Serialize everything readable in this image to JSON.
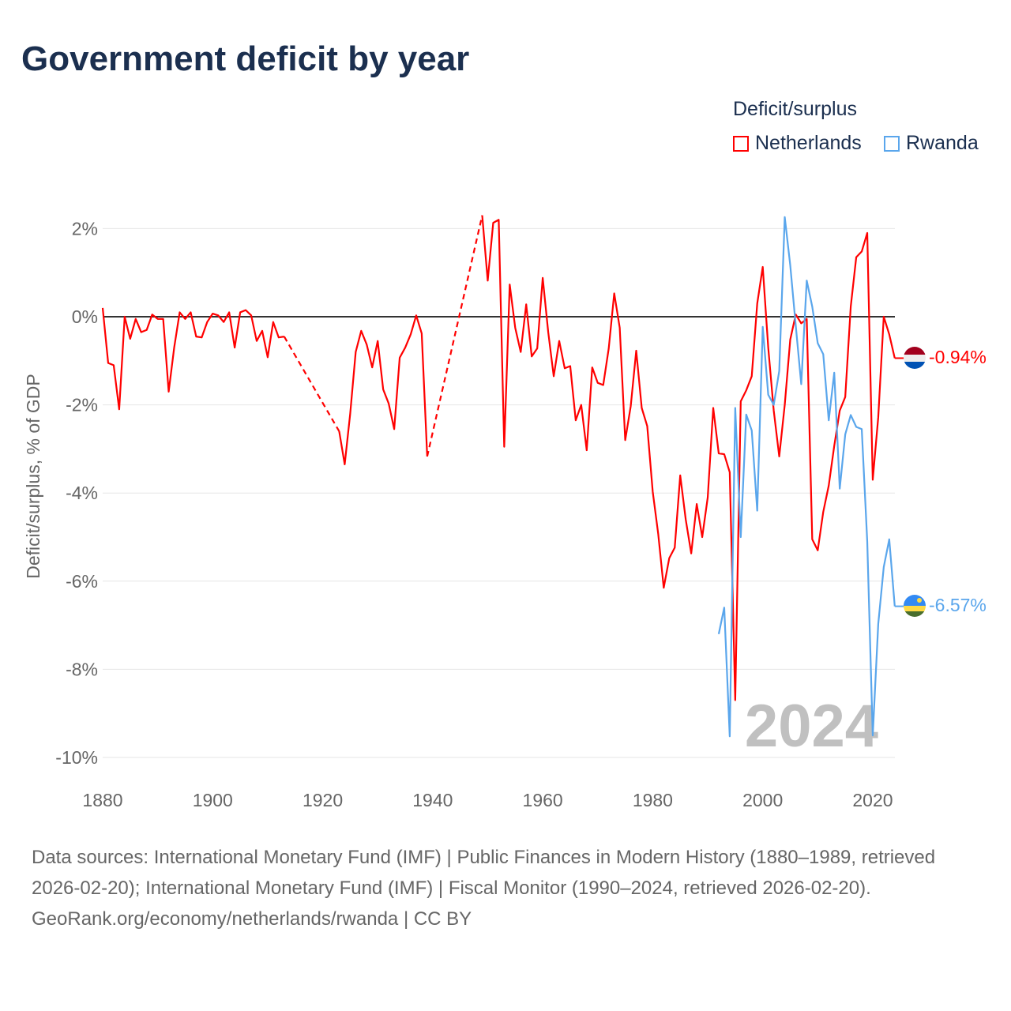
{
  "title": "Government deficit by year",
  "legend": {
    "title": "Deficit/surplus",
    "items": [
      "Netherlands",
      "Rwanda"
    ]
  },
  "colors": {
    "Netherlands": "#ff0000",
    "Rwanda": "#5aa6ec"
  },
  "year_watermark": "2024",
  "footer": {
    "sources": "Data sources: International Monetary Fund (IMF) | Public Finances in Modern History (1880–1989, retrieved 2026-02-20); International Monetary Fund (IMF) | Fiscal Monitor (1990–2024, retrieved 2026-02-20).",
    "credit": "GeoRank.org/economy/netherlands/rwanda | CC BY"
  },
  "chart_data": {
    "type": "line",
    "title": "Government deficit by year",
    "xlabel": "",
    "ylabel": "Deficit/surplus, % of GDP",
    "xlim": [
      1880,
      2024
    ],
    "ylim": [
      -10,
      2.3
    ],
    "xticks": [
      1880,
      1900,
      1920,
      1940,
      1960,
      1980,
      2000,
      2020
    ],
    "xtick_labels": [
      "1880",
      "1900",
      "1920",
      "1940",
      "1960",
      "1980",
      "2000",
      "2020"
    ],
    "yticks": [
      2,
      0,
      -2,
      -4,
      -6,
      -8,
      -10
    ],
    "ytick_labels": [
      "2%",
      "0%",
      "-2%",
      "-4%",
      "-6%",
      "-8%",
      "-10%"
    ],
    "grid": true,
    "legend_position": "top-right",
    "end_labels": [
      "-0.94%",
      "-6.57%"
    ],
    "series": [
      {
        "name": "Netherlands",
        "x": [
          1880,
          1881,
          1882,
          1883,
          1884,
          1885,
          1886,
          1887,
          1888,
          1889,
          1890,
          1891,
          1892,
          1893,
          1894,
          1895,
          1896,
          1897,
          1898,
          1899,
          1900,
          1901,
          1902,
          1903,
          1904,
          1905,
          1906,
          1907,
          1908,
          1909,
          1910,
          1911,
          1912,
          1913,
          1923,
          1924,
          1925,
          1926,
          1927,
          1928,
          1929,
          1930,
          1931,
          1932,
          1933,
          1934,
          1935,
          1936,
          1937,
          1938,
          1939,
          1949,
          1950,
          1951,
          1952,
          1953,
          1954,
          1955,
          1956,
          1957,
          1958,
          1959,
          1960,
          1961,
          1962,
          1963,
          1964,
          1965,
          1966,
          1967,
          1968,
          1969,
          1970,
          1971,
          1972,
          1973,
          1974,
          1975,
          1976,
          1977,
          1978,
          1979,
          1980,
          1981,
          1982,
          1983,
          1984,
          1985,
          1986,
          1987,
          1988,
          1989,
          1990,
          1991,
          1992,
          1993,
          1994,
          1995,
          1996,
          1997,
          1998,
          1999,
          2000,
          2001,
          2002,
          2003,
          2004,
          2005,
          2006,
          2007,
          2008,
          2009,
          2010,
          2011,
          2012,
          2013,
          2014,
          2015,
          2016,
          2017,
          2018,
          2019,
          2020,
          2021,
          2022,
          2023,
          2024
        ],
        "y": [
          0.2,
          -1.05,
          -1.1,
          -2.1,
          0,
          -0.5,
          -0.05,
          -0.35,
          -0.3,
          0.05,
          -0.05,
          -0.05,
          -1.7,
          -0.7,
          0.1,
          -0.05,
          0.1,
          -0.45,
          -0.47,
          -0.12,
          0.07,
          0.03,
          -0.12,
          0.1,
          -0.7,
          0.1,
          0.15,
          0.03,
          -0.55,
          -0.32,
          -0.92,
          -0.12,
          -0.47,
          -0.45,
          -2.6,
          -3.35,
          -2.2,
          -0.8,
          -0.32,
          -0.63,
          -1.15,
          -0.55,
          -1.65,
          -1.97,
          -2.55,
          -0.93,
          -0.7,
          -0.4,
          0.03,
          -0.38,
          -3.17,
          2.3,
          0.82,
          2.13,
          2.2,
          -2.95,
          0.73,
          -0.25,
          -0.8,
          0.28,
          -0.9,
          -0.72,
          0.88,
          -0.35,
          -1.35,
          -0.55,
          -1.17,
          -1.12,
          -2.35,
          -2.0,
          -3.03,
          -1.15,
          -1.5,
          -1.55,
          -0.72,
          0.53,
          -0.25,
          -2.8,
          -2.03,
          -0.77,
          -2.07,
          -2.48,
          -3.97,
          -4.93,
          -6.15,
          -5.48,
          -5.24,
          -3.6,
          -4.6,
          -5.37,
          -4.25,
          -5.0,
          -4.1,
          -2.07,
          -3.1,
          -3.12,
          -3.53,
          -8.7,
          -1.92,
          -1.67,
          -1.35,
          0.3,
          1.13,
          -0.7,
          -2.13,
          -3.17,
          -2.0,
          -0.52,
          0.05,
          -0.15,
          -0.05,
          -5.05,
          -5.3,
          -4.43,
          -3.83,
          -2.93,
          -2.13,
          -1.82,
          0.23,
          1.35,
          1.48,
          1.9,
          -3.7,
          -2.28,
          0,
          -0.4,
          -0.94
        ]
      },
      {
        "name": "Rwanda",
        "x": [
          1992,
          1993,
          1994,
          1995,
          1996,
          1997,
          1998,
          1999,
          2000,
          2001,
          2002,
          2003,
          2004,
          2005,
          2006,
          2007,
          2008,
          2009,
          2010,
          2011,
          2012,
          2013,
          2014,
          2015,
          2016,
          2017,
          2018,
          2019,
          2020,
          2021,
          2022,
          2023,
          2024
        ],
        "y": [
          -7.2,
          -6.6,
          -9.52,
          -2.07,
          -5.0,
          -2.22,
          -2.58,
          -4.4,
          -0.23,
          -1.77,
          -2.0,
          -1.23,
          2.26,
          1.17,
          -0.2,
          -1.53,
          0.82,
          0.23,
          -0.6,
          -0.85,
          -2.35,
          -1.27,
          -3.9,
          -2.67,
          -2.23,
          -2.5,
          -2.55,
          -5.1,
          -9.5,
          -6.97,
          -5.68,
          -5.05,
          -6.57
        ]
      }
    ]
  }
}
